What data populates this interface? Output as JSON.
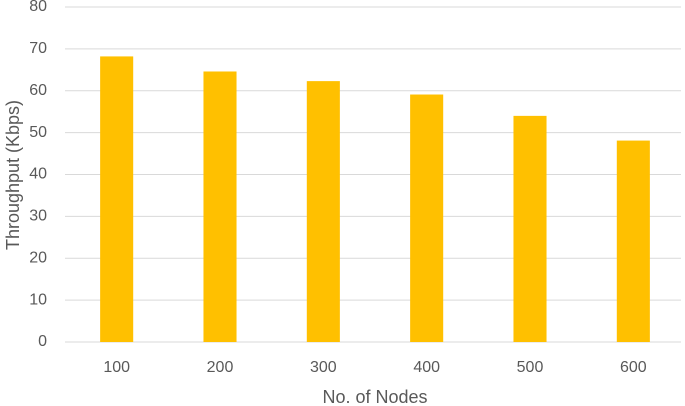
{
  "chart_data": {
    "type": "bar",
    "x_label": "No. of Nodes",
    "y_label": "Throughput (Kbps)",
    "categories": [
      "100",
      "200",
      "300",
      "400",
      "500",
      "600"
    ],
    "values": [
      68.2,
      64.6,
      62.3,
      59.1,
      54,
      48.1
    ],
    "color": "#ffc000",
    "ylim": [
      0,
      80
    ],
    "yticks": [
      0,
      10,
      20,
      30,
      40,
      50,
      60,
      70,
      80
    ],
    "grid": true
  }
}
